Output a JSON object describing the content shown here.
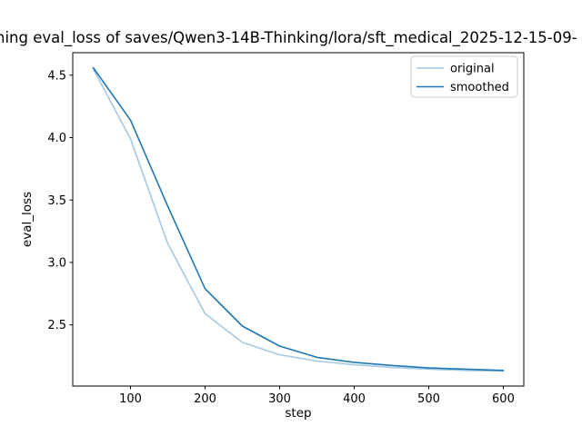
{
  "title": {
    "visible_text": "ning eval_loss of saves/Qwen3-14B-Thinking/lora/sft_medical_2025-12-15-09-"
  },
  "chart_data": {
    "type": "line",
    "title_visible": "ning eval_loss of saves/Qwen3-14B-Thinking/lora/sft_medical_2025-12-15-09-",
    "xlabel": "step",
    "ylabel": "eval_loss",
    "x": [
      50,
      100,
      150,
      200,
      250,
      300,
      350,
      400,
      450,
      500,
      550,
      600
    ],
    "series": [
      {
        "name": "original",
        "color": "#a5c9e1",
        "values": [
          4.55,
          3.99,
          3.15,
          2.59,
          2.36,
          2.26,
          2.21,
          2.18,
          2.16,
          2.145,
          2.135,
          2.13
        ]
      },
      {
        "name": "smoothed",
        "color": "#1f77b4",
        "values": [
          4.56,
          4.14,
          3.45,
          2.79,
          2.49,
          2.33,
          2.24,
          2.2,
          2.175,
          2.155,
          2.145,
          2.135
        ]
      }
    ],
    "xticks": [
      100,
      200,
      300,
      400,
      500,
      600
    ],
    "yticks": [
      2.5,
      3.0,
      3.5,
      4.0,
      4.5
    ],
    "xlim": [
      22.5,
      627.5
    ],
    "ylim": [
      2.01,
      4.68
    ],
    "grid": false,
    "legend_position": "upper right",
    "line_color_hex": "#1f77b4",
    "original_alpha_color_hex": "#a5c9e1"
  }
}
